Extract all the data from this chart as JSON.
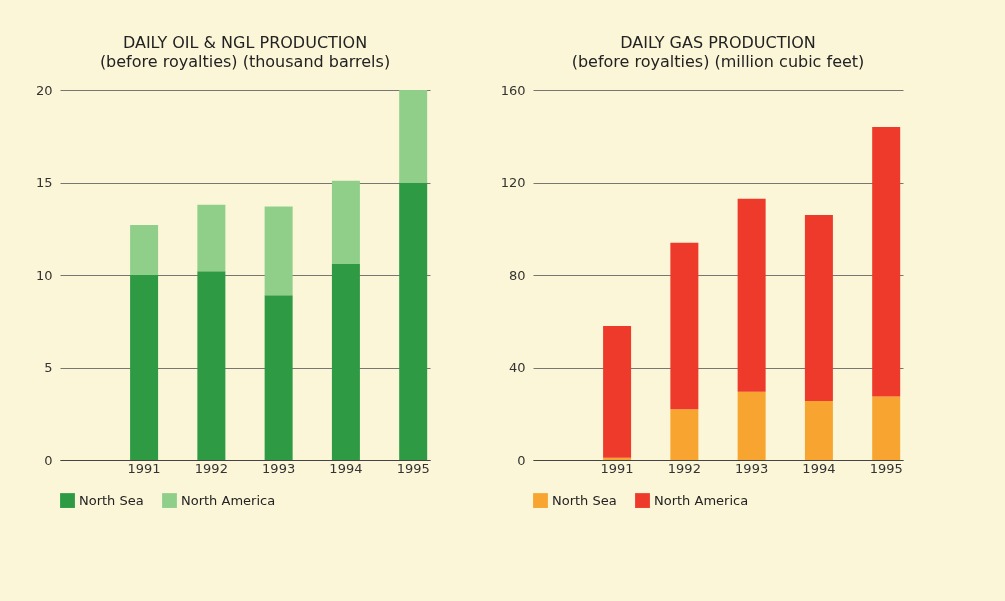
{
  "chart_data": [
    {
      "type": "bar",
      "title": "DAILY OIL & NGL PRODUCTION",
      "subtitle": "(before royalties) (thousand barrels)",
      "categories": [
        "1991",
        "1992",
        "1993",
        "1994",
        "1995"
      ],
      "stacked": true,
      "series": [
        {
          "name": "North Sea",
          "color": "#2e9a44",
          "values": [
            10,
            10.2,
            8.9,
            10.6,
            15
          ]
        },
        {
          "name": "North America",
          "color": "#8fcf8a",
          "values": [
            2.7,
            3.6,
            4.8,
            4.5,
            5
          ]
        }
      ],
      "ylim": [
        0,
        20
      ],
      "yticks": [
        0,
        5,
        10,
        15,
        20
      ],
      "grid": "y",
      "legend": "bottom"
    },
    {
      "type": "bar",
      "title": "DAILY GAS PRODUCTION",
      "subtitle": "(before royalties) (million cubic feet)",
      "categories": [
        "1991",
        "1992",
        "1993",
        "1994",
        "1995"
      ],
      "stacked": true,
      "series": [
        {
          "name": "North Sea",
          "color": "#f7a530",
          "values": [
            1,
            22,
            29.5,
            25.5,
            27.5
          ]
        },
        {
          "name": "North America",
          "color": "#ee3a2a",
          "values": [
            57,
            72,
            83.5,
            80.5,
            116.5
          ]
        }
      ],
      "ylim": [
        0,
        160
      ],
      "yticks": [
        0,
        40,
        80,
        120,
        160
      ],
      "grid": "y",
      "legend": "bottom"
    }
  ]
}
